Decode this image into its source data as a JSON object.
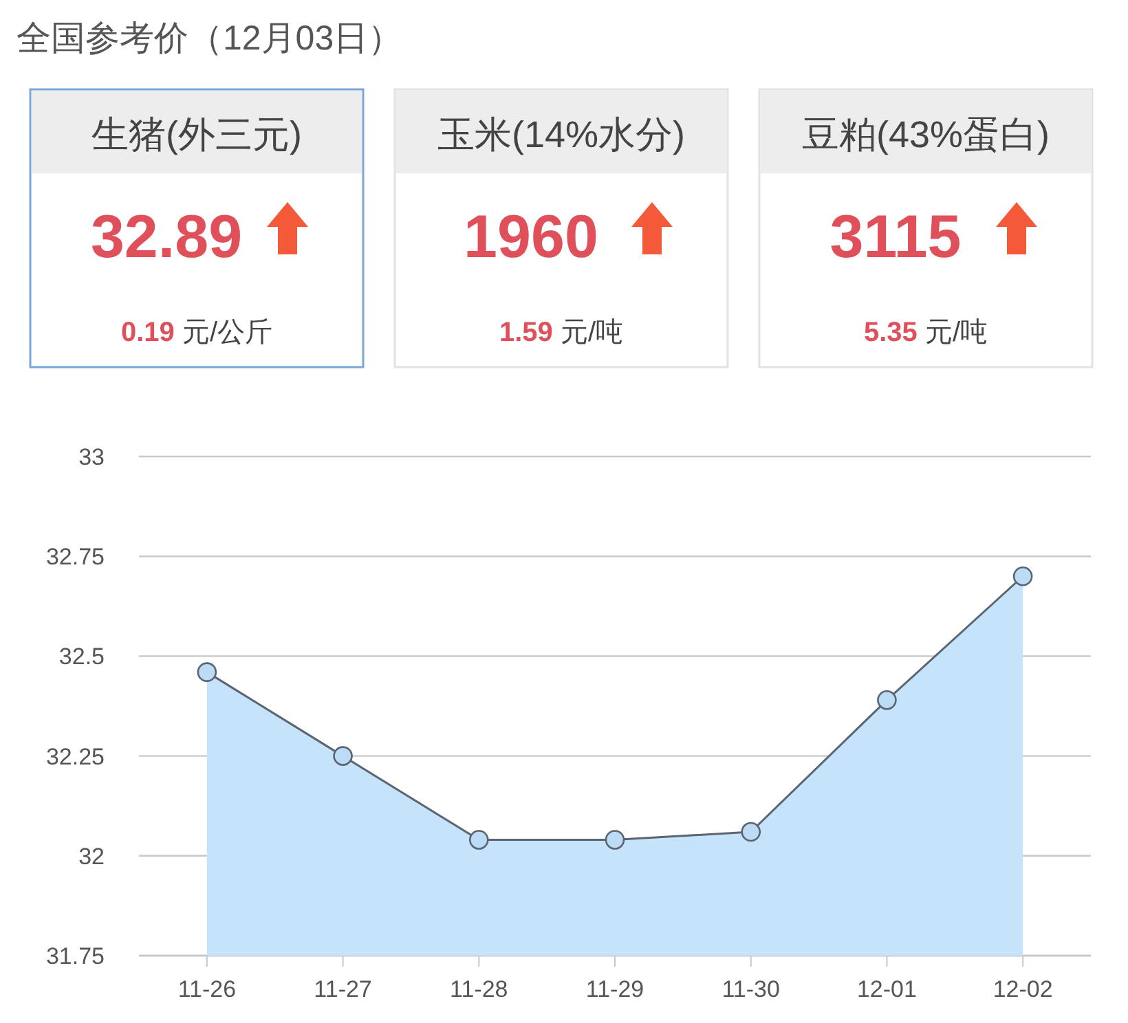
{
  "chart_data": [
    {
      "type": "other",
      "title": "全国参考价（12月03日）",
      "annotations": [
        "生猪(外三元)",
        "32.89",
        "0.19 元/公斤",
        "玉米(14%水分)",
        "1960",
        "1.59 元/吨",
        "豆粕(43%蛋白)",
        "3115",
        "5.35 元/吨"
      ]
    },
    {
      "type": "area",
      "categories": [
        "11-26",
        "11-27",
        "11-28",
        "11-29",
        "11-30",
        "12-01",
        "12-02"
      ],
      "series": [
        {
          "color": "#c5e3fb",
          "values": [
            32.46,
            32.25,
            32.04,
            32.04,
            32.06,
            32.39,
            32.7
          ]
        }
      ],
      "ylim": [
        31.75,
        33
      ],
      "yticks": [
        31.75,
        32,
        32.25,
        32.5,
        32.75,
        33
      ],
      "grid": "y",
      "marker": "circle",
      "line_style": "solid"
    }
  ]
}
